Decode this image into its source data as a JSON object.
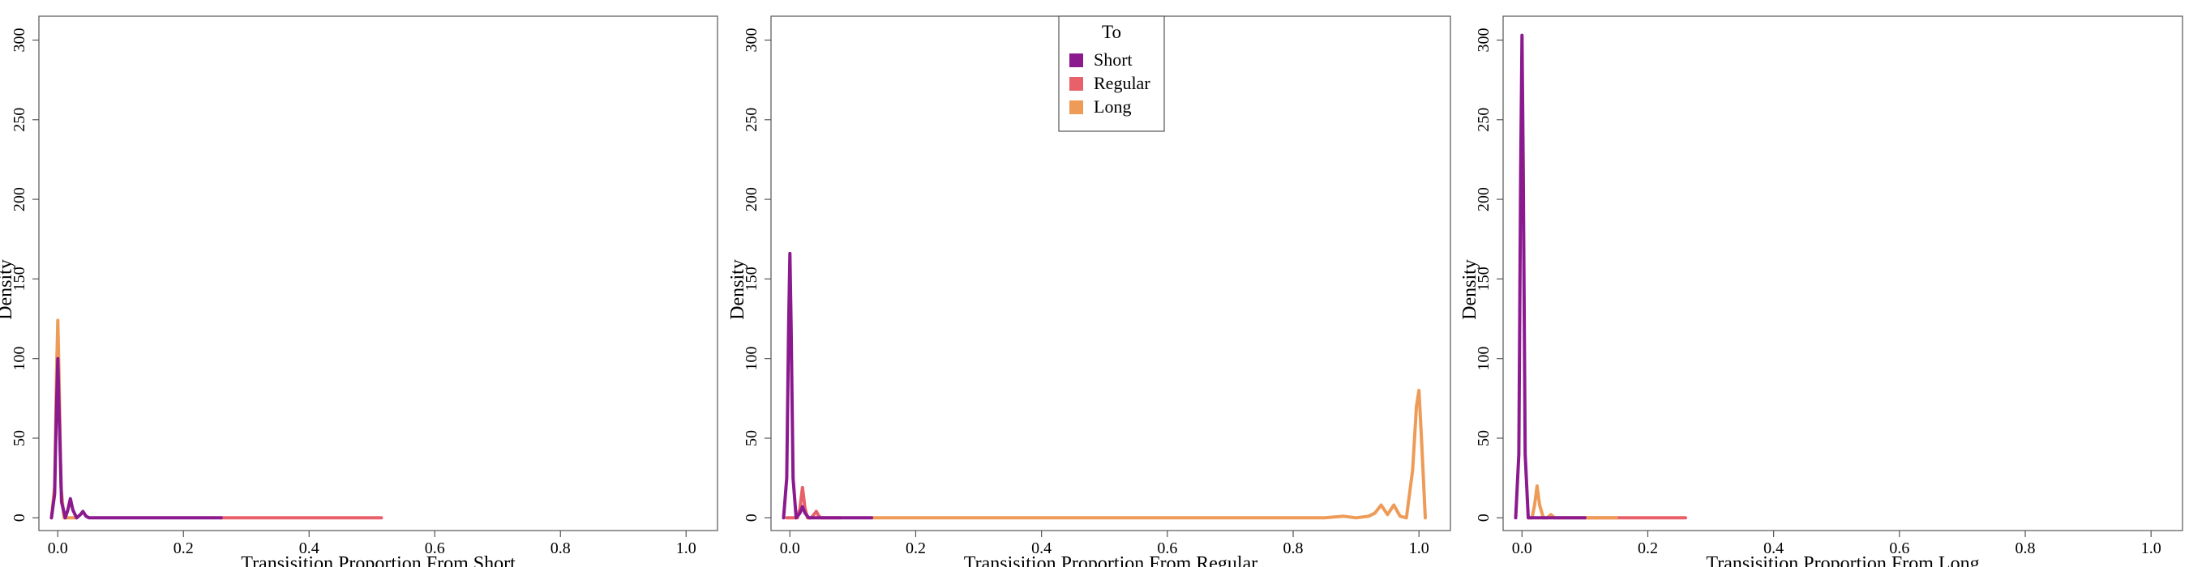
{
  "figure": {
    "ylabel": "Density",
    "legend": {
      "title": "To",
      "panel": 1,
      "placement": "top-center",
      "entries": [
        {
          "label": "Short",
          "color": "#8B1A8F"
        },
        {
          "label": "Regular",
          "color": "#E8616A"
        },
        {
          "label": "Long",
          "color": "#EE9B58"
        }
      ]
    }
  },
  "chart_data": [
    {
      "type": "line",
      "chart_kind": "density",
      "xlabel": "Transisition Proportion From Short",
      "ylabel": "Density",
      "xlim": [
        -0.03,
        1.05
      ],
      "ylim": [
        -8,
        315
      ],
      "xticks": [
        0.0,
        0.2,
        0.4,
        0.6,
        0.8,
        1.0
      ],
      "yticks": [
        0,
        50,
        100,
        150,
        200,
        250,
        300
      ],
      "series": [
        {
          "name": "Regular",
          "color": "#E8616A",
          "x": [
            0.26,
            0.3,
            0.4,
            0.515
          ],
          "y": [
            0,
            0,
            0,
            0
          ]
        },
        {
          "name": "Long",
          "color": "#EE9B58",
          "x": [
            -0.01,
            -0.005,
            -0.002,
            0.0,
            0.002,
            0.005,
            0.01,
            0.02,
            0.03
          ],
          "y": [
            0,
            20,
            90,
            124,
            90,
            20,
            0,
            0,
            0
          ]
        },
        {
          "name": "Short",
          "color": "#8B1A8F",
          "x": [
            -0.01,
            -0.005,
            -0.002,
            0.0,
            0.002,
            0.006,
            0.012,
            0.016,
            0.02,
            0.024,
            0.03,
            0.036,
            0.04,
            0.045,
            0.05,
            0.08,
            0.15,
            0.26
          ],
          "y": [
            0,
            15,
            70,
            100,
            70,
            10,
            0,
            5,
            12,
            5,
            0,
            2,
            4,
            1,
            0,
            0,
            0,
            0
          ]
        }
      ]
    },
    {
      "type": "line",
      "chart_kind": "density",
      "xlabel": "Transisition Proportion From Regular",
      "ylabel": "Density",
      "xlim": [
        -0.03,
        1.05
      ],
      "ylim": [
        -8,
        315
      ],
      "xticks": [
        0.0,
        0.2,
        0.4,
        0.6,
        0.8,
        1.0
      ],
      "yticks": [
        0,
        50,
        100,
        150,
        200,
        250,
        300
      ],
      "series": [
        {
          "name": "Regular",
          "color": "#E8616A",
          "x": [
            -0.005,
            0.012,
            0.016,
            0.02,
            0.024,
            0.028,
            0.034,
            0.038,
            0.042,
            0.046,
            0.05,
            0.08
          ],
          "y": [
            0,
            0,
            6,
            19,
            6,
            0,
            0,
            2,
            4,
            1,
            0,
            0
          ]
        },
        {
          "name": "Long",
          "color": "#EE9B58",
          "x": [
            0.13,
            0.3,
            0.5,
            0.7,
            0.85,
            0.88,
            0.9,
            0.92,
            0.93,
            0.94,
            0.95,
            0.96,
            0.97,
            0.98,
            0.99,
            0.996,
            1.0,
            1.004,
            1.01
          ],
          "y": [
            0,
            0,
            0,
            0,
            0,
            1,
            0,
            1,
            3,
            8,
            2,
            8,
            1,
            0,
            30,
            70,
            80,
            50,
            0
          ]
        },
        {
          "name": "Short",
          "color": "#8B1A8F",
          "x": [
            -0.01,
            -0.005,
            -0.002,
            0.0,
            0.002,
            0.005,
            0.01,
            0.016,
            0.02,
            0.024,
            0.03,
            0.05,
            0.13
          ],
          "y": [
            0,
            25,
            120,
            166,
            120,
            25,
            0,
            3,
            7,
            3,
            0,
            0,
            0
          ]
        }
      ]
    },
    {
      "type": "line",
      "chart_kind": "density",
      "xlabel": "Transisition Proportion From Long",
      "ylabel": "Density",
      "xlim": [
        -0.03,
        1.05
      ],
      "ylim": [
        -8,
        315
      ],
      "xticks": [
        0.0,
        0.2,
        0.4,
        0.6,
        0.8,
        1.0
      ],
      "yticks": [
        0,
        50,
        100,
        150,
        200,
        250,
        300
      ],
      "series": [
        {
          "name": "Regular",
          "color": "#E8616A",
          "x": [
            0.1,
            0.15,
            0.2,
            0.26
          ],
          "y": [
            0,
            0,
            0,
            0
          ]
        },
        {
          "name": "Long",
          "color": "#EE9B58",
          "x": [
            0.01,
            0.016,
            0.02,
            0.024,
            0.028,
            0.034,
            0.04,
            0.046,
            0.052,
            0.06,
            0.1,
            0.15
          ],
          "y": [
            0,
            0,
            8,
            20,
            8,
            0,
            0,
            2,
            0,
            0,
            0,
            0
          ]
        },
        {
          "name": "Short",
          "color": "#8B1A8F",
          "x": [
            -0.01,
            -0.005,
            -0.002,
            0.0,
            0.002,
            0.005,
            0.01,
            0.02,
            0.05,
            0.1
          ],
          "y": [
            0,
            40,
            220,
            303,
            220,
            40,
            0,
            0,
            0,
            0
          ]
        }
      ]
    }
  ]
}
